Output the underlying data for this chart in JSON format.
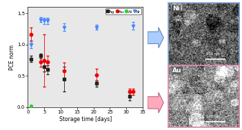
{
  "title": "",
  "xlabel": "Storage time [days]",
  "ylabel": "PCE norm",
  "xlim": [
    0,
    35
  ],
  "ylim": [
    0,
    1.6
  ],
  "yticks": [
    0.0,
    0.5,
    1.0,
    1.5
  ],
  "xticks": [
    0,
    5,
    10,
    15,
    20,
    25,
    30,
    35
  ],
  "series": {
    "Ag": {
      "color": "#222222",
      "marker": "s",
      "x": [
        1,
        4,
        5,
        6,
        11,
        21,
        31
      ],
      "y": [
        0.77,
        0.82,
        0.65,
        0.6,
        0.45,
        0.38,
        0.17
      ],
      "yerr": [
        0.05,
        0.04,
        0.08,
        0.07,
        0.2,
        0.05,
        0.06
      ]
    },
    "Au": {
      "color": "#ee0000",
      "marker": "o",
      "x": [
        1,
        4,
        5,
        6,
        11,
        21,
        31,
        32
      ],
      "y": [
        1.17,
        0.73,
        0.75,
        0.72,
        0.58,
        0.52,
        0.25,
        0.25
      ],
      "yerr": [
        0.1,
        0.08,
        0.42,
        0.1,
        0.13,
        0.09,
        0.05,
        0.05
      ]
    },
    "Al": {
      "color": "#33cc33",
      "marker": "o",
      "x": [
        1
      ],
      "y": [
        0.02
      ],
      "yerr": [
        0.01
      ]
    },
    "Ni": {
      "color": "#4488ff",
      "marker": "v",
      "x": [
        1,
        4,
        5,
        6,
        11,
        21,
        32
      ],
      "y": [
        1.0,
        1.4,
        1.38,
        1.38,
        1.28,
        1.28,
        1.3
      ],
      "yerr": [
        0.05,
        0.04,
        0.05,
        0.05,
        0.06,
        0.04,
        0.06
      ]
    }
  },
  "legend_order": [
    "Ag",
    "Au",
    "Al",
    "Ni"
  ],
  "plot_bg": "#e8e8e8",
  "fig_bg": "#ffffff",
  "arrow_ni_fc": "#aaccff",
  "arrow_ni_ec": "#6688bb",
  "arrow_au_fc": "#ffaabb",
  "arrow_au_ec": "#bb6688",
  "ni_border": "#88aadd",
  "au_border": "#dd88aa",
  "ni_label_bg": "#333333",
  "au_label_bg": "#555555"
}
